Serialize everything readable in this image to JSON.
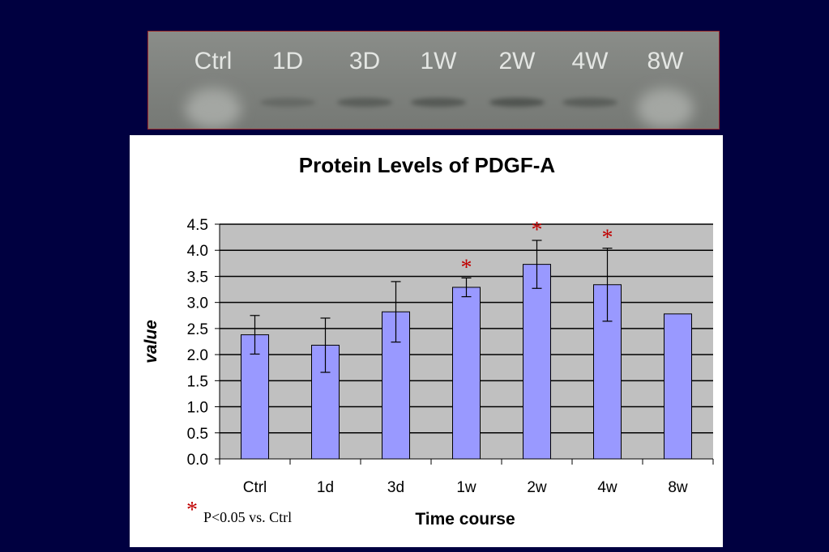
{
  "blot": {
    "lanes": [
      "Ctrl",
      "1D",
      "3D",
      "1W",
      "2W",
      "4W",
      "8W"
    ],
    "band_intensity": [
      0.15,
      0.45,
      0.7,
      0.8,
      0.9,
      0.7,
      0.0
    ]
  },
  "chart_data": {
    "type": "bar",
    "title": "Protein Levels of PDGF-A",
    "xlabel": "Time course",
    "ylabel": "value",
    "categories": [
      "Ctrl",
      "1d",
      "3d",
      "1w",
      "2w",
      "4w",
      "8w"
    ],
    "values": [
      2.38,
      2.18,
      2.82,
      3.29,
      3.73,
      3.34,
      2.78
    ],
    "errors": [
      0.37,
      0.52,
      0.58,
      0.18,
      0.46,
      0.7,
      null
    ],
    "significant": [
      false,
      false,
      false,
      true,
      true,
      true,
      false
    ],
    "significance_marker": "*",
    "ylim": [
      0,
      4.5
    ],
    "yticks": [
      "0.0",
      "0.5",
      "1.0",
      "1.5",
      "2.0",
      "2.5",
      "3.0",
      "3.5",
      "4.0",
      "4.5"
    ],
    "grid": true,
    "colors": {
      "bar": "#9999ff",
      "plot_bg": "#c0c0c0",
      "star": "#c00000",
      "slide_bg": "#000040"
    }
  },
  "footnote": {
    "marker": "*",
    "text": "P<0.05 vs. Ctrl"
  }
}
